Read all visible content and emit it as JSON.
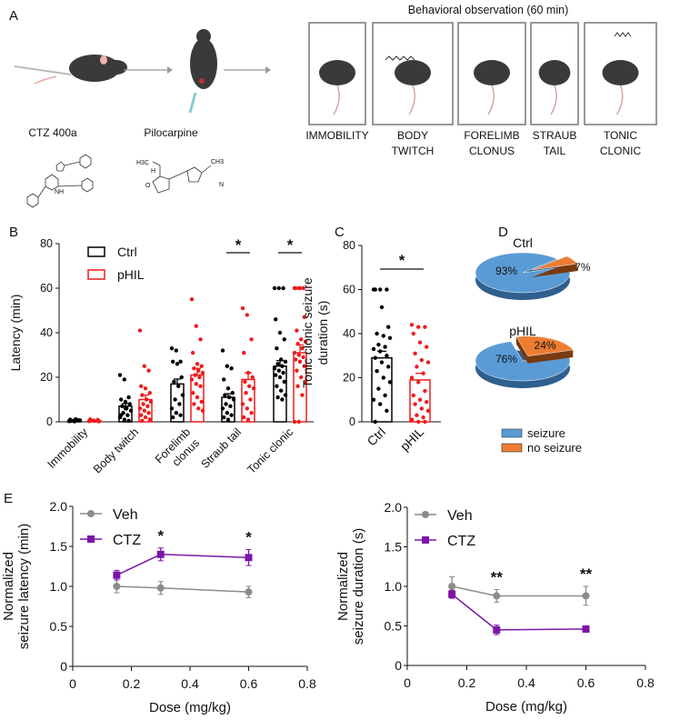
{
  "panel_labels": [
    "A",
    "B",
    "C",
    "D",
    "E"
  ],
  "panel_a": {
    "title": "Behavioral observation (60 min)",
    "steps": [
      "CTZ 400a",
      "Pilocarpine"
    ],
    "behaviors": [
      {
        "line1": "IMMOBILITY",
        "line2": ""
      },
      {
        "line1": "BODY",
        "line2": "TWITCH"
      },
      {
        "line1": "FORELIMB",
        "line2": "CLONUS"
      },
      {
        "line1": "STRAUB",
        "line2": "TAIL"
      },
      {
        "line1": "TONIC",
        "line2": "CLONIC"
      }
    ],
    "chem_labels": {
      "h3c": "H3C",
      "ch3": "CH3",
      "nh": "NH",
      "n": "N",
      "o": "O",
      "h": "H"
    }
  },
  "colors": {
    "ctrl": "#000000",
    "phil": "#ee1c1c",
    "veh": "#8c8c8c",
    "ctz": "#7b16a8",
    "seizure": "#5b9bd5",
    "no_seizure": "#ed7d31"
  },
  "chart_data": [
    {
      "id": "B",
      "type": "bar",
      "ylabel": "Latency (min)",
      "ylim": [
        0,
        80
      ],
      "yticks": [
        "0",
        "20",
        "40",
        "60",
        "80"
      ],
      "categories": [
        "Immobility",
        "Body twitch",
        "Forelimb\nclonus",
        "Straub tail",
        "Tonic clonic"
      ],
      "legend": [
        "Ctrl",
        "pHIL"
      ],
      "significance": [
        {
          "category": 3,
          "label": "*"
        },
        {
          "category": 4,
          "label": "*"
        }
      ],
      "series": [
        {
          "name": "Ctrl",
          "means": [
            0.5,
            7,
            17,
            11,
            25
          ],
          "sem": [
            0.1,
            1.2,
            2.2,
            1.6,
            2.5
          ],
          "points": [
            [
              0.3,
              0.5,
              0.8,
              1,
              0.2,
              0.6,
              0.4,
              1.2,
              0.7
            ],
            [
              21,
              19,
              11,
              10,
              9,
              8,
              7,
              6,
              5,
              4,
              3,
              2,
              1,
              0.5,
              3,
              6
            ],
            [
              33,
              32,
              27,
              27,
              26,
              20,
              18,
              16,
              12,
              10,
              8,
              6,
              4,
              3,
              2
            ],
            [
              32,
              25,
              24,
              19,
              15,
              13,
              12,
              11,
              10,
              8,
              7,
              6,
              4,
              3,
              2,
              1
            ],
            [
              60,
              60,
              60,
              46,
              40,
              37,
              33,
              28,
              27,
              26,
              25,
              24,
              23,
              22,
              21,
              20,
              18,
              16,
              14,
              12,
              11,
              10
            ]
          ]
        },
        {
          "name": "pHIL",
          "means": [
            0.5,
            10,
            21,
            19,
            31
          ],
          "sem": [
            0.1,
            2,
            3,
            3,
            3.5
          ],
          "points": [
            [
              0.3,
              0.6,
              0.9,
              1.1,
              0.4,
              0.2
            ],
            [
              41,
              25,
              23,
              16,
              15,
              13,
              12,
              10,
              9,
              8,
              7,
              6,
              5,
              4,
              3,
              2,
              1,
              0.5
            ],
            [
              55,
              43,
              37,
              31,
              26,
              25,
              24,
              23,
              22,
              21,
              20,
              19,
              17,
              16,
              13,
              11,
              9,
              8,
              6,
              5
            ],
            [
              51,
              48,
              37,
              31,
              22,
              20,
              18,
              16,
              15,
              13,
              10,
              8,
              6,
              4,
              2,
              1
            ],
            [
              60,
              60,
              60,
              60,
              60,
              47,
              41,
              37,
              36,
              35,
              33,
              31,
              30,
              29,
              28,
              27,
              25,
              23,
              20,
              18,
              16,
              12,
              0,
              0
            ]
          ]
        }
      ]
    },
    {
      "id": "C",
      "type": "bar",
      "ylabel": [
        "Tonic clonic seizure",
        "duration (s)"
      ],
      "ylim": [
        0,
        80
      ],
      "yticks": [
        "0",
        "20",
        "40",
        "60",
        "80"
      ],
      "categories": [
        "Ctrl",
        "pHIL"
      ],
      "significance": [
        {
          "between": [
            0,
            1
          ],
          "label": "*"
        }
      ],
      "means": [
        29,
        19
      ],
      "sem": [
        3,
        3
      ],
      "points": [
        [
          60,
          60,
          60,
          60,
          52,
          43,
          40,
          39,
          38,
          35,
          34,
          33,
          32,
          30,
          29,
          27,
          25,
          23,
          20,
          18,
          15,
          12,
          10,
          8,
          5,
          0
        ],
        [
          44,
          43,
          43,
          40,
          36,
          34,
          31,
          28,
          27,
          25,
          22,
          20,
          18,
          14,
          12,
          10,
          9,
          8,
          6,
          5,
          3,
          2,
          1,
          0,
          0
        ]
      ]
    },
    {
      "id": "D",
      "type": "pie",
      "pies": [
        {
          "title": "Ctrl",
          "slices": [
            {
              "label": "seizure",
              "value": 93,
              "text": "93%"
            },
            {
              "label": "no seizure",
              "value": 7,
              "text": "7%"
            }
          ]
        },
        {
          "title": "pHIL",
          "slices": [
            {
              "label": "seizure",
              "value": 76,
              "text": "76%"
            },
            {
              "label": "no seizure",
              "value": 24,
              "text": "24%"
            }
          ]
        }
      ],
      "legend": [
        "seizure",
        "no seizure"
      ]
    },
    {
      "id": "E-left",
      "type": "line",
      "xlabel": "Dose (mg/kg)",
      "ylabel": [
        "Normalized",
        "seizure latency (min)"
      ],
      "xlim": [
        0,
        0.8
      ],
      "ylim": [
        0,
        2.0
      ],
      "xticks": [
        "0",
        "0.2",
        "0.4",
        "0.6",
        "0.8"
      ],
      "yticks": [
        "0",
        "0.5",
        "1.0",
        "1.5",
        "2.0"
      ],
      "x": [
        0.15,
        0.3,
        0.6
      ],
      "series": [
        {
          "name": "Veh",
          "values": [
            1.0,
            0.98,
            0.93
          ],
          "err": [
            0.08,
            0.08,
            0.07
          ]
        },
        {
          "name": "CTZ",
          "values": [
            1.14,
            1.4,
            1.36
          ],
          "err": [
            0.06,
            0.08,
            0.1
          ]
        }
      ],
      "annotations": [
        {
          "x": 0.3,
          "label": "*"
        },
        {
          "x": 0.6,
          "label": "*"
        }
      ]
    },
    {
      "id": "E-right",
      "type": "line",
      "xlabel": "Dose (mg/kg)",
      "ylabel": [
        "Normalized",
        "seizure duration (s)"
      ],
      "xlim": [
        0,
        0.8
      ],
      "ylim": [
        0,
        2.0
      ],
      "xticks": [
        "0",
        "0.2",
        "0.4",
        "0.6",
        "0.8"
      ],
      "yticks": [
        "0",
        "0.5",
        "1.0",
        "1.5",
        "2.0"
      ],
      "x": [
        0.15,
        0.3,
        0.6
      ],
      "series": [
        {
          "name": "Veh",
          "values": [
            1.0,
            0.88,
            0.88
          ],
          "err": [
            0.12,
            0.08,
            0.12
          ]
        },
        {
          "name": "CTZ",
          "values": [
            0.9,
            0.45,
            0.46
          ],
          "err": [
            0.05,
            0.06,
            0.02
          ]
        }
      ],
      "annotations": [
        {
          "x": 0.3,
          "label": "**"
        },
        {
          "x": 0.6,
          "label": "**"
        }
      ]
    }
  ]
}
